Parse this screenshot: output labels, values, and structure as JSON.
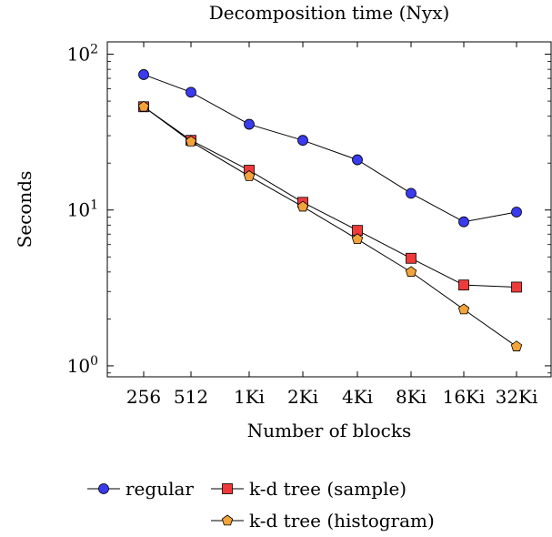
{
  "chart_data": {
    "type": "line",
    "title": "Decomposition time (Nyx)",
    "xlabel": "Number of blocks",
    "ylabel": "Seconds",
    "yscale": "log",
    "ylim": [
      0.85,
      120
    ],
    "categories": [
      "256",
      "512",
      "1Ki",
      "2Ki",
      "4Ki",
      "8Ki",
      "16Ki",
      "32Ki"
    ],
    "y_ticks": [
      {
        "value": 1,
        "base": "10",
        "exp": "0"
      },
      {
        "value": 10,
        "base": "10",
        "exp": "1"
      },
      {
        "value": 100,
        "base": "10",
        "exp": "2"
      }
    ],
    "grid": false,
    "legend_position": "bottom",
    "series": [
      {
        "name": "regular",
        "marker": "circle",
        "color": "#3a3af0",
        "values": [
          74,
          57,
          35.5,
          28,
          21,
          12.8,
          8.4,
          9.7
        ]
      },
      {
        "name": "k-d tree (sample)",
        "marker": "square",
        "color": "#f03a3a",
        "values": [
          46,
          28,
          18,
          11.2,
          7.4,
          4.9,
          3.3,
          3.2
        ]
      },
      {
        "name": "k-d tree (histogram)",
        "marker": "pentagon",
        "color": "#f2a33a",
        "values": [
          46,
          27.5,
          16.5,
          10.5,
          6.5,
          4.0,
          2.3,
          1.33
        ]
      }
    ]
  }
}
